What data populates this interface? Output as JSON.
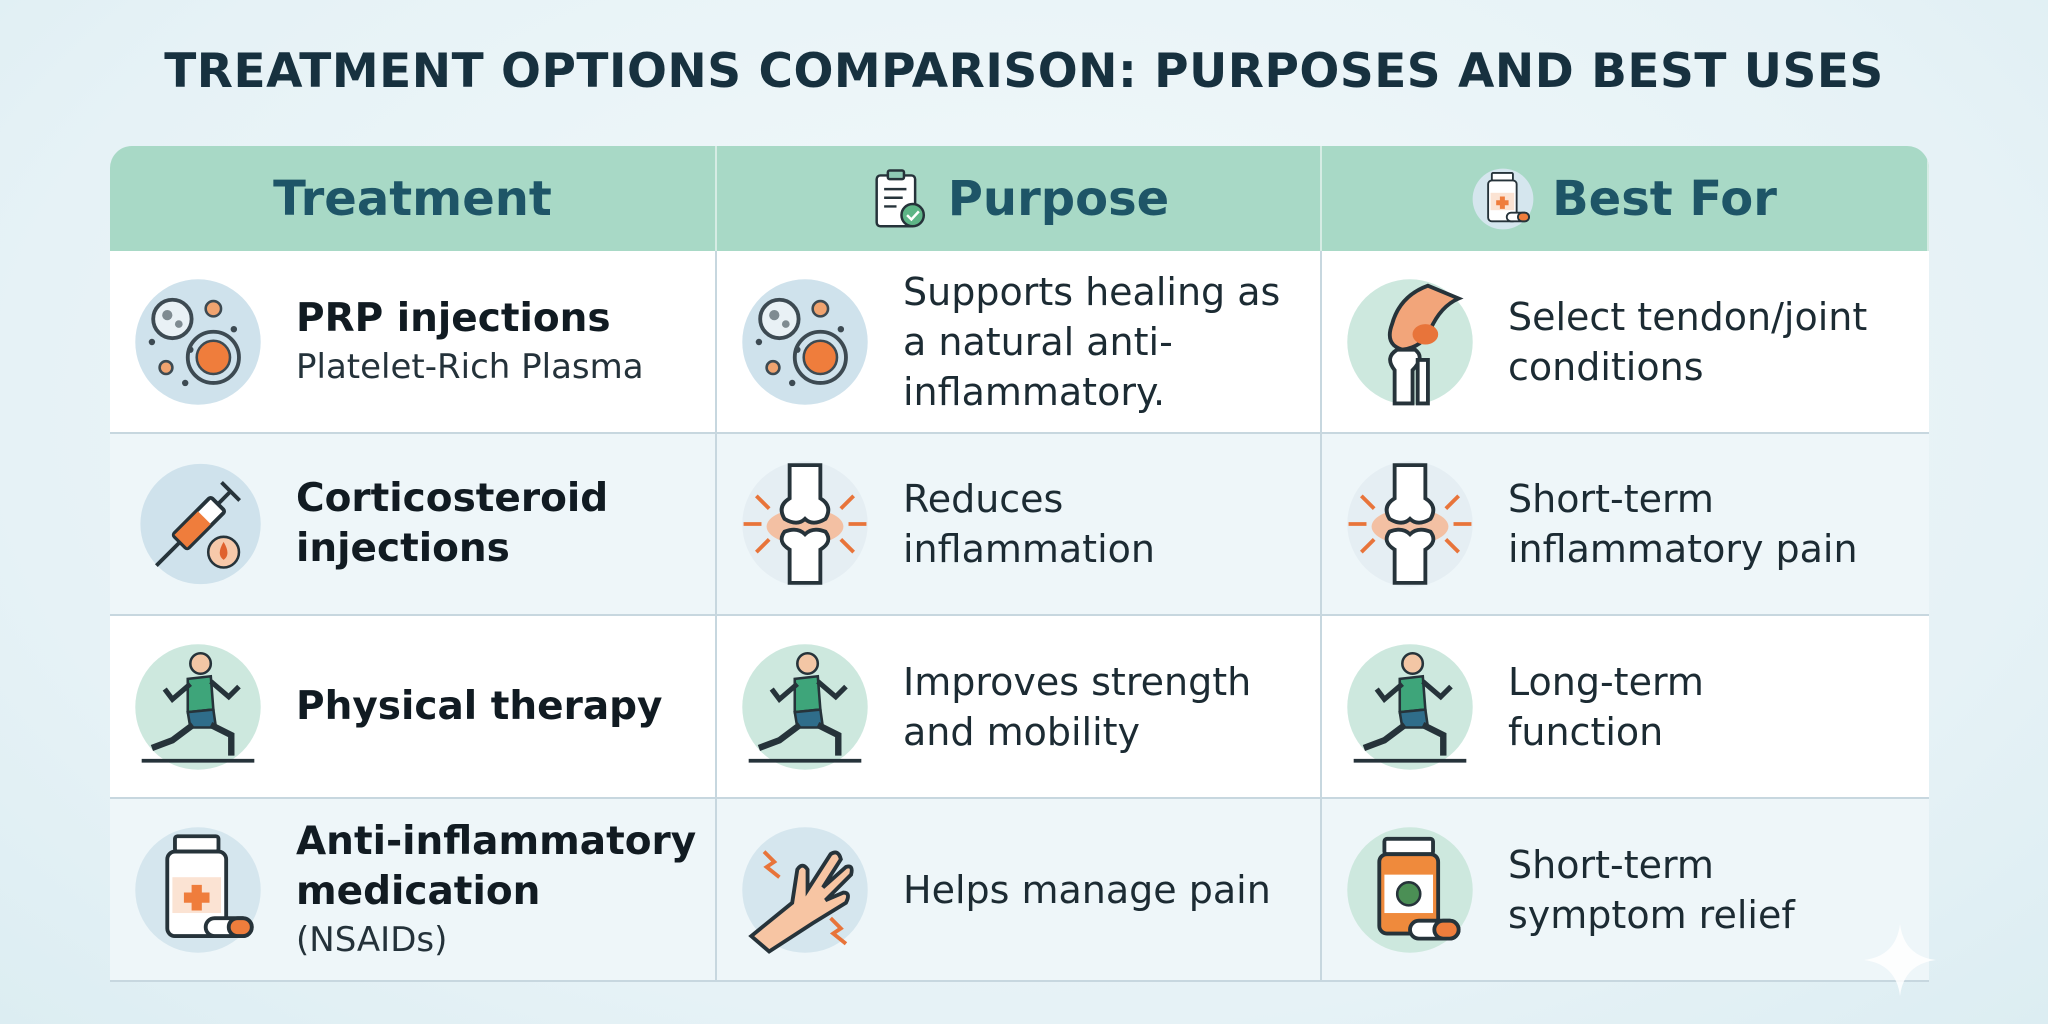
{
  "title": "TREATMENT OPTIONS COMPARISON: PURPOSES AND BEST USES",
  "table": {
    "columns": [
      "Treatment",
      "Purpose",
      "Best For"
    ],
    "rows": [
      {
        "treatment": "PRP injections",
        "treatment_detail": "Platelet-Rich Plasma",
        "purpose": "Supports healing as a natural anti-inflammatory.",
        "best_for": "Select tendon/joint conditions"
      },
      {
        "treatment": "Corticosteroid injections",
        "purpose": "Reduces inflammation",
        "best_for": "Short-term inflammatory pain"
      },
      {
        "treatment": "Physical therapy",
        "purpose": "Improves strength and mobility",
        "best_for": "Long-term function"
      },
      {
        "treatment": "Anti-inflammatory medication",
        "treatment_detail": "(NSAIDs)",
        "purpose": "Helps manage pain",
        "best_for": "Short-term symptom relief"
      }
    ]
  }
}
